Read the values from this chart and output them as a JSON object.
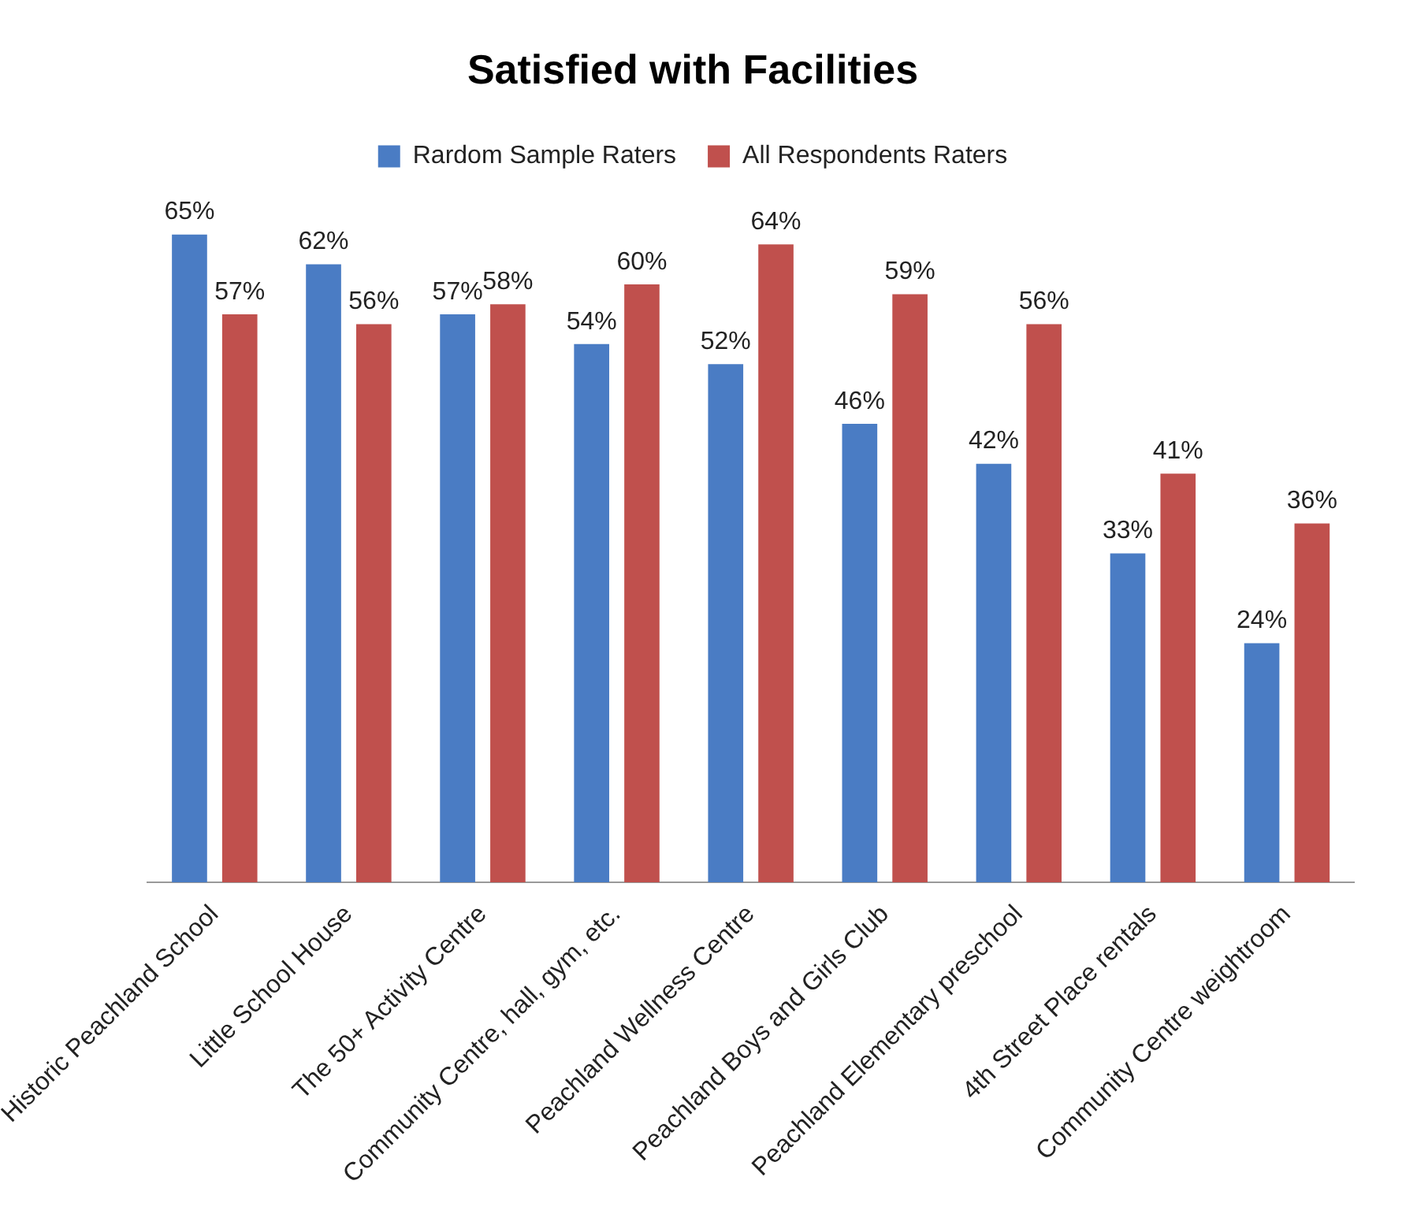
{
  "chart_data": {
    "type": "bar",
    "title": "Satisfied with Facilities",
    "categories": [
      "Historic Peachland School",
      "Little School House",
      "The 50+ Activity Centre",
      "Community Centre, hall, gym, etc.",
      "Peachland Wellness Centre",
      "Peachland Boys and Girls Club",
      "Peachland Elementary preschool",
      "4th Street Place rentals",
      "Community Centre weightroom"
    ],
    "series": [
      {
        "name": "Rardom Sample Raters",
        "color": "#4a7cc4",
        "values": [
          65,
          62,
          57,
          54,
          52,
          46,
          42,
          33,
          24
        ],
        "value_labels": [
          "65%",
          "62%",
          "57%",
          "54%",
          "52%",
          "46%",
          "42%",
          "33%",
          "24%"
        ]
      },
      {
        "name": "All Respondents Raters",
        "color": "#c0504d",
        "values": [
          57,
          56,
          58,
          60,
          64,
          59,
          56,
          41,
          36
        ],
        "value_labels": [
          "57%",
          "56%",
          "58%",
          "60%",
          "64%",
          "59%",
          "56%",
          "41%",
          "36%"
        ]
      }
    ],
    "legend": "top",
    "grid": false,
    "tick_labels": "x"
  }
}
